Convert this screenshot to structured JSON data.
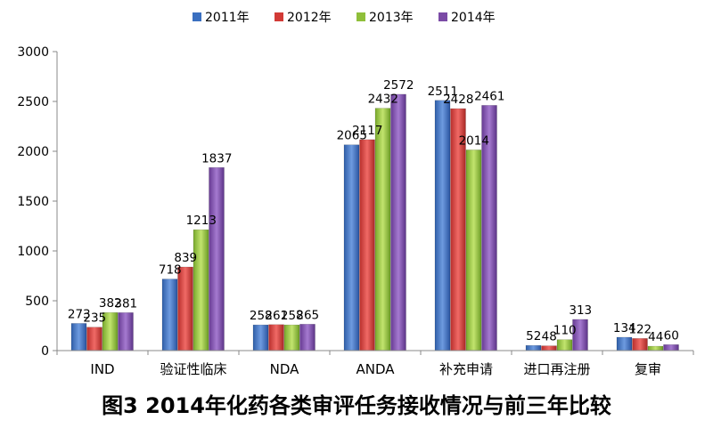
{
  "chart_data": {
    "type": "bar",
    "categories": [
      "IND",
      "验证性临床",
      "NDA",
      "ANDA",
      "补充申请",
      "进口再注册",
      "复审"
    ],
    "series": [
      {
        "name": "2011年",
        "color": "#3a6fc0",
        "values": [
          273,
          718,
          258,
          2065,
          2511,
          52,
          134
        ]
      },
      {
        "name": "2012年",
        "color": "#d23a36",
        "values": [
          235,
          839,
          261,
          2117,
          2428,
          48,
          122
        ]
      },
      {
        "name": "2013年",
        "color": "#8fbf3a",
        "values": [
          382,
          1213,
          258,
          2432,
          2014,
          110,
          44
        ]
      },
      {
        "name": "2014年",
        "color": "#7b4ba6",
        "values": [
          381,
          1837,
          265,
          2572,
          2461,
          313,
          60
        ]
      }
    ],
    "ylim": [
      0,
      3000
    ],
    "yticks": [
      0,
      500,
      1000,
      1500,
      2000,
      2500,
      3000
    ],
    "legend_position": "top",
    "grid": false,
    "caption": "图3  2014年化药各类审评任务接收情况与前三年比较"
  }
}
